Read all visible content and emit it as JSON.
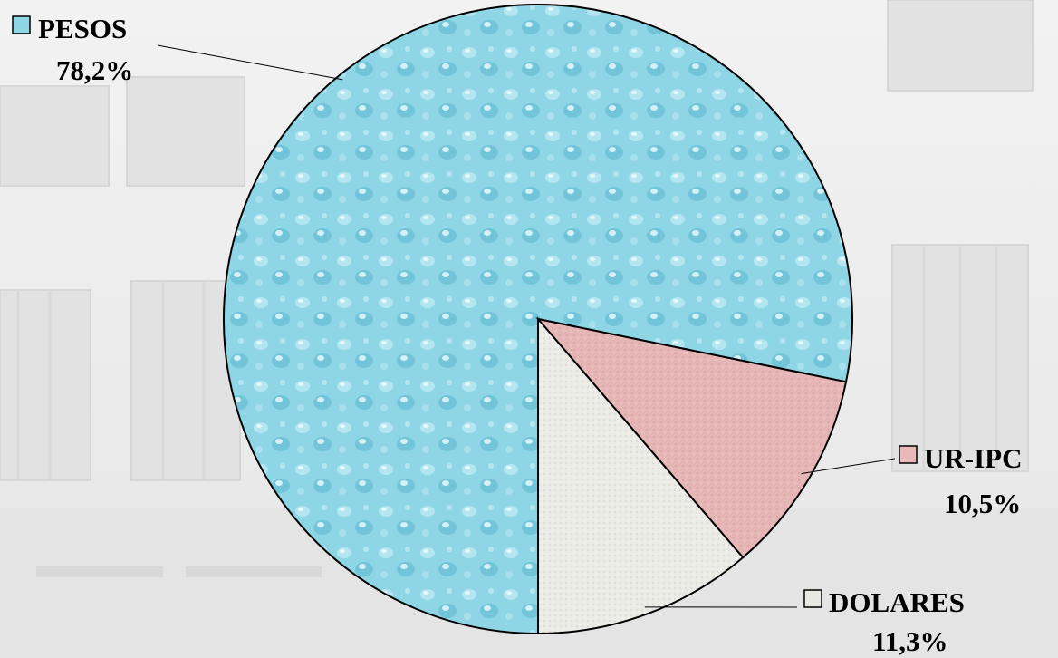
{
  "chart_data": {
    "type": "pie",
    "slices": [
      {
        "label": "PESOS",
        "value": 78.2,
        "value_text": "78,2%",
        "color": "#8ed5e6"
      },
      {
        "label": "UR-IPC",
        "value": 10.5,
        "value_text": "10,5%",
        "color": "#e8b9b9"
      },
      {
        "label": "DOLARES",
        "value": 11.3,
        "value_text": "11,3%",
        "color": "#e9e9e4"
      }
    ]
  }
}
